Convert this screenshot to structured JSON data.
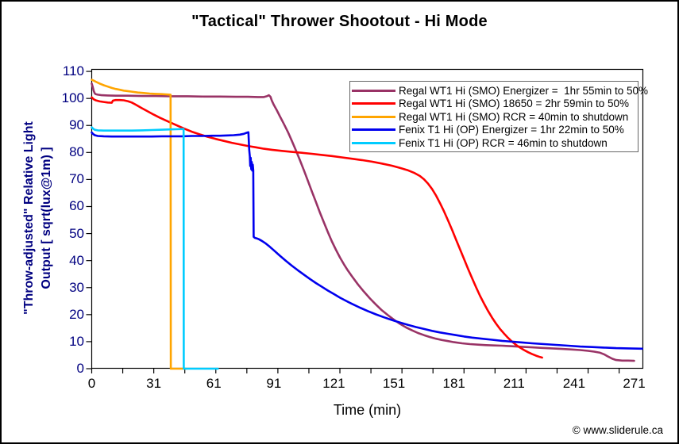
{
  "title": "\"Tactical\" Thrower Shootout - Hi Mode",
  "watermark": "© www.sliderule.ca",
  "colors": {
    "axis_text": "#000080",
    "x_axis_text": "#000000",
    "plot_border": "#000000",
    "legend_border": "#666666"
  },
  "chart_data": {
    "type": "line",
    "title": "\"Tactical\" Thrower Shootout - Hi Mode",
    "xlabel": "Time (min)",
    "ylabel_line1": "\"Throw-adjusted\" Relative Light",
    "ylabel_line2": "Output [ sqrt(lux@1m) ]",
    "xlim": [
      0,
      275.7
    ],
    "ylim": [
      0,
      110.9
    ],
    "x_major_ticks": [
      0,
      31,
      61,
      91,
      121,
      151,
      181,
      211,
      241,
      271
    ],
    "x_minor_step": 15.5,
    "y_ticks": [
      0,
      10,
      20,
      30,
      40,
      50,
      60,
      70,
      80,
      90,
      100,
      110
    ],
    "grid": false,
    "legend_position": "top-right",
    "series": [
      {
        "name": "Regal WT1 Hi (SMO) Energizer =  1hr 55min to 50%",
        "color": "#993366",
        "points": [
          [
            0,
            105.5
          ],
          [
            0.5,
            104.2
          ],
          [
            1,
            102.8
          ],
          [
            1.5,
            101.9
          ],
          [
            2,
            101.6
          ],
          [
            3,
            101.4
          ],
          [
            5,
            101.2
          ],
          [
            8,
            101.1
          ],
          [
            12,
            101.0
          ],
          [
            18,
            101.0
          ],
          [
            25,
            100.9
          ],
          [
            32,
            100.9
          ],
          [
            40,
            100.8
          ],
          [
            48,
            100.8
          ],
          [
            56,
            100.7
          ],
          [
            64,
            100.7
          ],
          [
            72,
            100.6
          ],
          [
            78,
            100.6
          ],
          [
            83,
            100.5
          ],
          [
            86,
            100.5
          ],
          [
            87.5,
            100.8
          ],
          [
            88.5,
            101.2
          ],
          [
            89.3,
            100.6
          ],
          [
            90,
            99.2
          ],
          [
            91,
            97.6
          ],
          [
            92.5,
            95.6
          ],
          [
            94,
            93.4
          ],
          [
            96,
            90.6
          ],
          [
            98,
            87.6
          ],
          [
            100,
            84.3
          ],
          [
            102,
            80.8
          ],
          [
            104,
            77.2
          ],
          [
            106,
            73.4
          ],
          [
            108,
            69.5
          ],
          [
            110,
            65.6
          ],
          [
            112,
            61.7
          ],
          [
            114,
            57.8
          ],
          [
            116,
            54.1
          ],
          [
            118,
            50.5
          ],
          [
            120,
            47.1
          ],
          [
            122,
            44.0
          ],
          [
            124,
            41.2
          ],
          [
            126,
            38.6
          ],
          [
            128,
            36.3
          ],
          [
            130,
            34.2
          ],
          [
            133,
            31.2
          ],
          [
            136,
            28.5
          ],
          [
            139,
            26.0
          ],
          [
            142,
            23.7
          ],
          [
            145,
            21.6
          ],
          [
            148,
            19.8
          ],
          [
            151,
            18.1
          ],
          [
            154,
            16.6
          ],
          [
            157,
            15.3
          ],
          [
            160,
            14.2
          ],
          [
            163,
            13.2
          ],
          [
            166,
            12.4
          ],
          [
            169,
            11.7
          ],
          [
            172,
            11.1
          ],
          [
            175,
            10.6
          ],
          [
            178,
            10.2
          ],
          [
            181,
            9.8
          ],
          [
            185,
            9.4
          ],
          [
            189,
            9.1
          ],
          [
            193,
            8.9
          ],
          [
            197,
            8.7
          ],
          [
            201,
            8.6
          ],
          [
            205,
            8.5
          ],
          [
            210,
            8.3
          ],
          [
            215,
            8.1
          ],
          [
            220,
            7.9
          ],
          [
            225,
            7.7
          ],
          [
            230,
            7.5
          ],
          [
            235,
            7.3
          ],
          [
            240,
            7.1
          ],
          [
            244,
            6.9
          ],
          [
            248,
            6.6
          ],
          [
            251,
            6.3
          ],
          [
            254,
            5.9
          ],
          [
            256,
            5.3
          ],
          [
            258,
            4.5
          ],
          [
            260,
            3.7
          ],
          [
            262,
            3.2
          ],
          [
            265,
            3.0
          ],
          [
            268,
            3.0
          ],
          [
            271,
            2.9
          ]
        ]
      },
      {
        "name": "Regal WT1 Hi (SMO) 18650 = 2hr 59min to 50%",
        "color": "#FF0000",
        "points": [
          [
            0,
            100.4
          ],
          [
            1,
            99.7
          ],
          [
            2,
            99.3
          ],
          [
            4,
            98.9
          ],
          [
            6,
            98.7
          ],
          [
            8,
            98.5
          ],
          [
            10,
            98.4
          ],
          [
            10.6,
            99.2
          ],
          [
            12,
            99.4
          ],
          [
            14,
            99.4
          ],
          [
            16,
            99.3
          ],
          [
            18,
            99.0
          ],
          [
            20,
            98.5
          ],
          [
            22,
            97.7
          ],
          [
            25,
            96.4
          ],
          [
            28,
            95.2
          ],
          [
            31,
            94.0
          ],
          [
            34,
            92.9
          ],
          [
            38,
            91.5
          ],
          [
            42,
            90.2
          ],
          [
            46,
            88.9
          ],
          [
            50,
            87.7
          ],
          [
            54,
            86.7
          ],
          [
            58,
            85.8
          ],
          [
            62,
            85.0
          ],
          [
            66,
            84.3
          ],
          [
            70,
            83.6
          ],
          [
            74,
            83.0
          ],
          [
            78,
            82.4
          ],
          [
            82,
            81.9
          ],
          [
            86,
            81.4
          ],
          [
            90,
            81.0
          ],
          [
            95,
            80.6
          ],
          [
            100,
            80.2
          ],
          [
            105,
            79.9
          ],
          [
            110,
            79.5
          ],
          [
            115,
            79.1
          ],
          [
            120,
            78.7
          ],
          [
            125,
            78.2
          ],
          [
            130,
            77.7
          ],
          [
            135,
            77.2
          ],
          [
            140,
            76.6
          ],
          [
            145,
            75.9
          ],
          [
            150,
            75.1
          ],
          [
            154,
            74.3
          ],
          [
            158,
            73.4
          ],
          [
            161,
            72.5
          ],
          [
            164,
            71.3
          ],
          [
            166,
            70.1
          ],
          [
            168,
            68.5
          ],
          [
            170,
            66.5
          ],
          [
            172,
            64.1
          ],
          [
            174,
            61.3
          ],
          [
            176,
            58.2
          ],
          [
            178,
            54.9
          ],
          [
            180,
            51.4
          ],
          [
            182,
            47.8
          ],
          [
            184,
            44.2
          ],
          [
            186,
            40.6
          ],
          [
            188,
            37.0
          ],
          [
            190,
            33.5
          ],
          [
            192,
            30.2
          ],
          [
            194,
            27.0
          ],
          [
            196,
            24.1
          ],
          [
            198,
            21.4
          ],
          [
            200,
            18.9
          ],
          [
            202,
            16.7
          ],
          [
            204,
            14.7
          ],
          [
            206,
            13.0
          ],
          [
            208,
            11.4
          ],
          [
            210,
            10.0
          ],
          [
            212,
            8.8
          ],
          [
            214,
            7.8
          ],
          [
            216,
            6.9
          ],
          [
            218,
            6.1
          ],
          [
            220,
            5.4
          ],
          [
            222,
            4.8
          ],
          [
            224,
            4.3
          ],
          [
            225,
            4.1
          ]
        ]
      },
      {
        "name": "Regal WT1 Hi (SMO) RCR = 40min to shutdown",
        "color": "#FFA500",
        "points": [
          [
            0,
            106.9
          ],
          [
            1,
            106.6
          ],
          [
            2,
            106.2
          ],
          [
            4,
            105.5
          ],
          [
            6,
            104.9
          ],
          [
            8,
            104.4
          ],
          [
            10,
            103.9
          ],
          [
            12,
            103.5
          ],
          [
            14,
            103.2
          ],
          [
            16,
            102.9
          ],
          [
            18,
            102.7
          ],
          [
            20,
            102.5
          ],
          [
            23,
            102.2
          ],
          [
            26,
            102.0
          ],
          [
            29,
            101.8
          ],
          [
            32,
            101.7
          ],
          [
            35,
            101.6
          ],
          [
            37,
            101.5
          ],
          [
            39.4,
            101.4
          ],
          [
            39.5,
            0
          ],
          [
            43,
            0
          ],
          [
            47,
            0
          ]
        ]
      },
      {
        "name": "Fenix T1 Hi (OP) Energizer = 1hr 22min to 50%",
        "color": "#0000EE",
        "points": [
          [
            0,
            87.4
          ],
          [
            0.7,
            86.8
          ],
          [
            1.5,
            86.4
          ],
          [
            3,
            86.1
          ],
          [
            6,
            86.0
          ],
          [
            10,
            85.9
          ],
          [
            15,
            85.9
          ],
          [
            20,
            85.9
          ],
          [
            25,
            85.9
          ],
          [
            30,
            85.9
          ],
          [
            35,
            86.0
          ],
          [
            40,
            86.0
          ],
          [
            45,
            86.0
          ],
          [
            50,
            86.1
          ],
          [
            55,
            86.1
          ],
          [
            60,
            86.2
          ],
          [
            64,
            86.2
          ],
          [
            68,
            86.3
          ],
          [
            71,
            86.4
          ],
          [
            74,
            86.6
          ],
          [
            76,
            86.9
          ],
          [
            77.5,
            87.3
          ],
          [
            78.3,
            87.5
          ],
          [
            78.7,
            81.0
          ],
          [
            79.0,
            78.5
          ],
          [
            79.2,
            75.0
          ],
          [
            79.45,
            78.0
          ],
          [
            79.7,
            73.8
          ],
          [
            79.95,
            76.5
          ],
          [
            80.2,
            73.3
          ],
          [
            80.45,
            75.5
          ],
          [
            80.7,
            73.4
          ],
          [
            80.9,
            48.8
          ],
          [
            81.5,
            48.4
          ],
          [
            82.5,
            48.2
          ],
          [
            83.5,
            47.9
          ],
          [
            85,
            47.3
          ],
          [
            87,
            46.3
          ],
          [
            89,
            45.1
          ],
          [
            91,
            43.8
          ],
          [
            94,
            41.8
          ],
          [
            97,
            39.9
          ],
          [
            100,
            38.1
          ],
          [
            103,
            36.4
          ],
          [
            106,
            34.8
          ],
          [
            109,
            33.2
          ],
          [
            112,
            31.7
          ],
          [
            115,
            30.3
          ],
          [
            118,
            28.9
          ],
          [
            121,
            27.6
          ],
          [
            124,
            26.3
          ],
          [
            127,
            25.1
          ],
          [
            130,
            24.0
          ],
          [
            134,
            22.6
          ],
          [
            138,
            21.3
          ],
          [
            142,
            20.1
          ],
          [
            146,
            19.0
          ],
          [
            150,
            18.0
          ],
          [
            154,
            17.1
          ],
          [
            158,
            16.2
          ],
          [
            162,
            15.4
          ],
          [
            166,
            14.7
          ],
          [
            170,
            14.0
          ],
          [
            174,
            13.4
          ],
          [
            178,
            12.9
          ],
          [
            182,
            12.4
          ],
          [
            186,
            11.9
          ],
          [
            190,
            11.5
          ],
          [
            195,
            11.1
          ],
          [
            200,
            10.7
          ],
          [
            205,
            10.3
          ],
          [
            210,
            10.0
          ],
          [
            215,
            9.7
          ],
          [
            220,
            9.4
          ],
          [
            226,
            9.1
          ],
          [
            232,
            8.8
          ],
          [
            238,
            8.5
          ],
          [
            244,
            8.2
          ],
          [
            250,
            8.0
          ],
          [
            256,
            7.8
          ],
          [
            262,
            7.6
          ],
          [
            268,
            7.5
          ],
          [
            275,
            7.4
          ]
        ]
      },
      {
        "name": "Fenix T1 Hi (OP) RCR = 46min to shutdown",
        "color": "#00CCFF",
        "points": [
          [
            0,
            89.3
          ],
          [
            0.7,
            88.8
          ],
          [
            1.5,
            88.4
          ],
          [
            3,
            88.2
          ],
          [
            6,
            88.1
          ],
          [
            10,
            88.1
          ],
          [
            15,
            88.1
          ],
          [
            20,
            88.1
          ],
          [
            25,
            88.2
          ],
          [
            30,
            88.3
          ],
          [
            34,
            88.4
          ],
          [
            38,
            88.5
          ],
          [
            42,
            88.6
          ],
          [
            45.9,
            88.7
          ],
          [
            46,
            0
          ],
          [
            53,
            0
          ],
          [
            63,
            0
          ]
        ]
      }
    ]
  }
}
